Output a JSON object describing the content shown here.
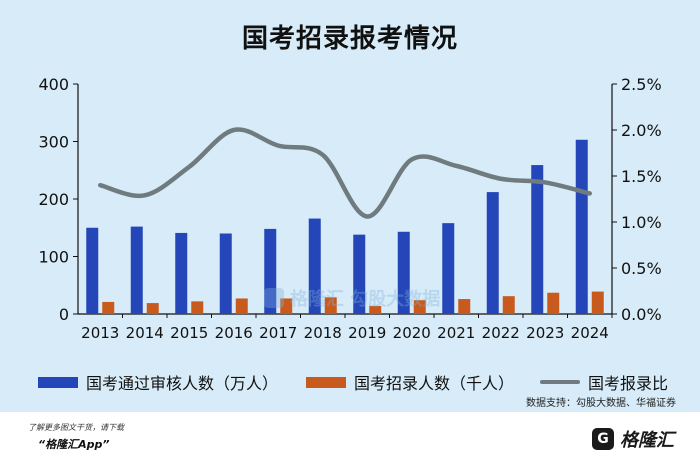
{
  "title": "国考招录报考情况",
  "chart_data": {
    "type": "bar",
    "categories": [
      "2013",
      "2014",
      "2015",
      "2016",
      "2017",
      "2018",
      "2019",
      "2020",
      "2021",
      "2022",
      "2023",
      "2024"
    ],
    "series": [
      {
        "name": "国考通过审核人数（万人）",
        "type": "bar",
        "axis": "left",
        "color": "#2546b8",
        "values": [
          150,
          152,
          141,
          140,
          148,
          166,
          138,
          143,
          158,
          212,
          259,
          303
        ]
      },
      {
        "name": "国考招录人数（千人）",
        "type": "bar",
        "axis": "left",
        "color": "#c85a1e",
        "values": [
          21,
          19,
          22,
          27,
          27,
          29,
          14,
          24,
          26,
          31,
          37,
          39
        ]
      },
      {
        "name": "国考报录比",
        "type": "line",
        "axis": "right",
        "color": "#6f7b7f",
        "values": [
          1.4,
          1.29,
          1.6,
          2.0,
          1.83,
          1.73,
          1.06,
          1.68,
          1.61,
          1.47,
          1.43,
          1.31
        ]
      }
    ],
    "y_left": {
      "min": 0,
      "max": 400,
      "ticks": [
        "0",
        "100",
        "200",
        "300",
        "400"
      ]
    },
    "y_right": {
      "min": 0,
      "max": 2.5,
      "ticks": [
        "0.0%",
        "0.5%",
        "1.0%",
        "1.5%",
        "2.0%",
        "2.5%"
      ]
    },
    "grid": false,
    "legend_position": "bottom"
  },
  "source": "数据支持：勾股大数据、华福证券",
  "watermark": {
    "text": "格隆汇 勾股大数据"
  },
  "footer": {
    "note": "了解更多图文干货，请下载",
    "app": "“格隆汇App”",
    "logo_glyph": "G",
    "logo_text": "格隆汇"
  }
}
